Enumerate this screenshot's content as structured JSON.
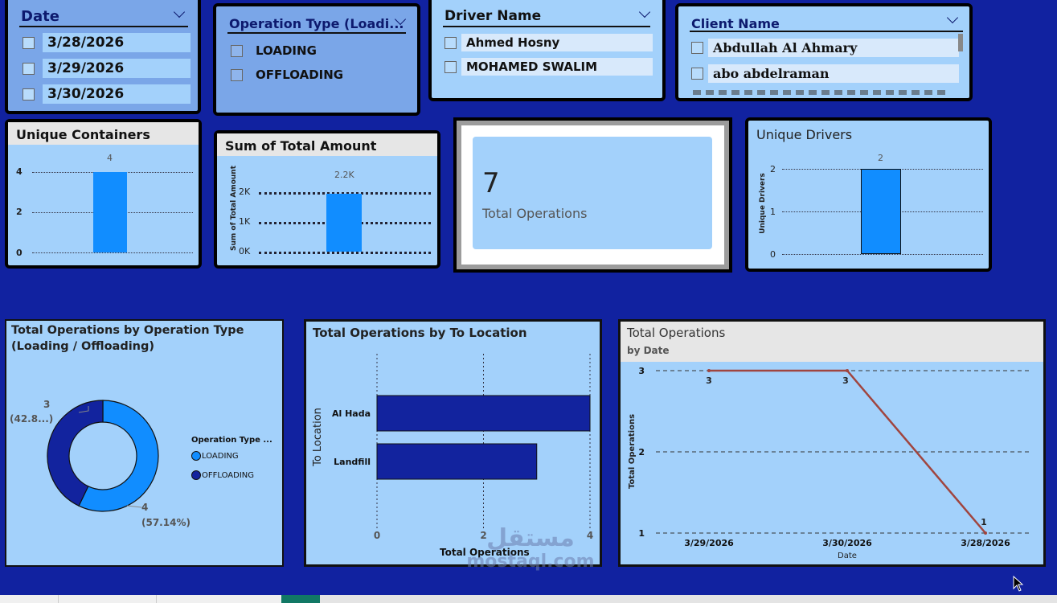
{
  "slicers": {
    "date": {
      "title": "Date",
      "options": [
        "3/28/2026",
        "3/29/2026",
        "3/30/2026"
      ]
    },
    "operation_type": {
      "title": "Operation Type (Loadi...",
      "options": [
        "LOADING",
        "OFFLOADING"
      ]
    },
    "driver_name": {
      "title": "Driver Name",
      "options": [
        "Ahmed Hosny",
        "MOHAMED SWALIM"
      ]
    },
    "client_name": {
      "title": "Client Name",
      "options": [
        "Abdullah Al Ahmary",
        "abo abdelraman"
      ]
    }
  },
  "unique_containers": {
    "title": "Unique Containers",
    "ticks": [
      "4",
      "2",
      "0"
    ],
    "value_label": "4"
  },
  "sum_total_amount": {
    "title": "Sum of Total Amount",
    "ylabel": "Sum of Total Amount",
    "ticks": [
      "2K",
      "1K",
      "0K"
    ],
    "value_label": "2.2K"
  },
  "total_operations_card": {
    "value": "7",
    "label": "Total Operations"
  },
  "unique_drivers": {
    "title": "Unique Drivers",
    "ylabel": "Unique Drivers",
    "ticks": [
      "2",
      "1",
      "0"
    ],
    "value_label": "2"
  },
  "donut": {
    "title_line1": "Total Operations by Operation Type",
    "title_line2": "(Loading / Offloading)",
    "label_offloading_value": "3",
    "label_offloading_pct": "(42.8...)",
    "label_loading_value": "4",
    "label_loading_pct": "(57.14%)",
    "legend_title": "Operation Type ...",
    "legend_items": [
      "LOADING",
      "OFFLOADING"
    ]
  },
  "to_location": {
    "title": "Total Operations by To Location",
    "ylabel": "To Location",
    "xlabel": "Total Operations",
    "categories": [
      "Al Hada",
      "Landfill"
    ],
    "x_ticks": [
      "0",
      "2",
      "4"
    ]
  },
  "line_chart": {
    "title": "Total Operations",
    "subtitle": "by Date",
    "ylabel": "Total Operations",
    "xlabel": "Date",
    "y_ticks": [
      "3",
      "2",
      "1"
    ],
    "x_ticks": [
      "3/29/2026",
      "3/30/2026",
      "3/28/2026"
    ],
    "point_labels": [
      "3",
      "3",
      "1"
    ]
  },
  "watermark": {
    "name": "mostaql.com",
    "arabic": "مستقل"
  },
  "chart_data": [
    {
      "type": "bar",
      "title": "Unique Containers",
      "categories": [
        ""
      ],
      "values": [
        4
      ],
      "ylim": [
        0,
        4
      ],
      "grid": true,
      "color": "#118dff"
    },
    {
      "type": "bar",
      "title": "Sum of Total Amount",
      "ylabel": "Sum of Total Amount",
      "categories": [
        ""
      ],
      "values": [
        2200
      ],
      "ylim": [
        0,
        2200
      ],
      "grid": true,
      "color": "#118dff"
    },
    {
      "type": "bar",
      "title": "Unique Drivers",
      "ylabel": "Unique Drivers",
      "categories": [
        ""
      ],
      "values": [
        2
      ],
      "ylim": [
        0,
        2
      ],
      "grid": true,
      "color": "#118dff"
    },
    {
      "type": "pie",
      "title": "Total Operations by Operation Type (Loading / Offloading)",
      "categories": [
        "LOADING",
        "OFFLOADING"
      ],
      "values": [
        4,
        3
      ],
      "legend": "right",
      "colors": [
        "#118dff",
        "#12239e"
      ]
    },
    {
      "type": "bar",
      "orientation": "horizontal",
      "title": "Total Operations by To Location",
      "xlabel": "Total Operations",
      "ylabel": "To Location",
      "categories": [
        "Al Hada",
        "Landfill"
      ],
      "values": [
        4,
        3
      ],
      "xlim": [
        0,
        4
      ],
      "grid": true,
      "color": "#12239e"
    },
    {
      "type": "line",
      "title": "Total Operations",
      "subtitle": "by Date",
      "xlabel": "Date",
      "ylabel": "Total Operations",
      "x": [
        "3/29/2026",
        "3/30/2026",
        "3/28/2026"
      ],
      "values": [
        3,
        3,
        1
      ],
      "ylim": [
        1,
        3
      ],
      "grid": true,
      "color": "#a0453f"
    }
  ]
}
